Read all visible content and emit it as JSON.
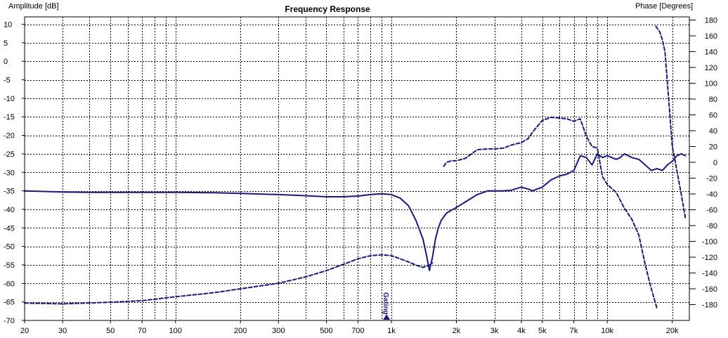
{
  "chart_data": {
    "type": "line",
    "title": "Frequency Response",
    "ylabel_left": "Amplitude [dB]",
    "ylabel_right": "Phase [Degrees]",
    "xscale": "log",
    "xlim": [
      20,
      24000
    ],
    "ylim_left": [
      -70,
      12
    ],
    "ylim_right": [
      -200,
      184
    ],
    "grid": true,
    "x_ticks": [
      20,
      30,
      50,
      70,
      100,
      200,
      300,
      500,
      700,
      1000,
      2000,
      3000,
      4000,
      5000,
      7000,
      10000,
      20000
    ],
    "x_tick_labels": [
      "20",
      "30",
      "50",
      "70",
      "100",
      "200",
      "300",
      "500",
      "700",
      "1k",
      "2k",
      "3k",
      "4k",
      "5k",
      "7k",
      "10k",
      "20k"
    ],
    "y_left_ticks": [
      10,
      5,
      0,
      -5,
      -10,
      -15,
      -20,
      -25,
      -30,
      -35,
      -40,
      -45,
      -50,
      -55,
      -60,
      -65,
      -70
    ],
    "y_right_ticks": [
      180,
      160,
      140,
      120,
      100,
      80,
      60,
      40,
      20,
      0,
      -20,
      -40,
      -60,
      -80,
      -100,
      -120,
      -140,
      -160,
      -180
    ],
    "marker": {
      "label": "Gating",
      "x": 950
    },
    "color": "#1a1a7a",
    "series": [
      {
        "axis": "left",
        "style": "solid",
        "x": [
          20,
          30,
          40,
          50,
          70,
          100,
          150,
          200,
          300,
          400,
          500,
          600,
          700,
          800,
          900,
          1000,
          1100,
          1200,
          1300,
          1400,
          1450,
          1500,
          1550,
          1600,
          1650,
          1700,
          1800,
          2000,
          2200,
          2500,
          2800,
          3000,
          3300,
          3600,
          4000,
          4300,
          4500,
          5000,
          5500,
          6000,
          6500,
          7000,
          7500,
          8000,
          8500,
          9000,
          9500,
          10000,
          10500,
          11000,
          11500,
          12000,
          13000,
          14000,
          15000,
          16000,
          17000,
          18000,
          19000,
          20000,
          21000,
          22000,
          23000
        ],
        "y": [
          -35,
          -35.3,
          -35.4,
          -35.4,
          -35.4,
          -35.4,
          -35.5,
          -35.7,
          -36,
          -36.3,
          -36.6,
          -36.6,
          -36.4,
          -36,
          -35.8,
          -36,
          -37,
          -39,
          -43,
          -48,
          -52,
          -56.5,
          -53,
          -48,
          -45,
          -43,
          -41,
          -39.5,
          -38,
          -36,
          -35,
          -35,
          -35,
          -34.8,
          -34,
          -34.5,
          -35,
          -34,
          -32,
          -31,
          -30.5,
          -29.5,
          -25.5,
          -26,
          -28,
          -25,
          -26,
          -25.5,
          -26,
          -26.5,
          -26,
          -25,
          -26,
          -26.5,
          -28,
          -29.5,
          -29,
          -29.5,
          -28,
          -27,
          -25.5,
          -25,
          -25.5
        ]
      },
      {
        "axis": "right",
        "style": "dashed",
        "x": [
          20,
          30,
          50,
          70,
          100,
          150,
          200,
          300,
          400,
          500,
          600,
          700,
          800,
          900,
          1000,
          1100,
          1200,
          1300,
          1400,
          1500,
          1550
        ],
        "y": [
          -178,
          -179,
          -177,
          -175,
          -170,
          -165,
          -160,
          -153,
          -145,
          -137,
          -129,
          -122,
          -118,
          -117,
          -118,
          -122,
          -126,
          -130,
          -133,
          -130,
          -127
        ]
      },
      {
        "axis": "right",
        "style": "dashed",
        "x": [
          1750,
          1800,
          1900,
          2000,
          2200,
          2500,
          2800,
          3000,
          3300,
          3600,
          4000,
          4300,
          4500,
          5000,
          5500,
          6000,
          6500,
          7000,
          7500,
          8000,
          8500,
          9000,
          9500,
          10000,
          11000,
          12000,
          13000,
          14000,
          15000,
          16000,
          17000
        ],
        "y": [
          -5,
          0,
          2,
          2,
          5,
          16,
          17,
          17,
          18,
          22,
          25,
          30,
          38,
          53,
          57,
          56,
          55,
          52,
          55,
          33,
          20,
          18,
          -18,
          -28,
          -38,
          -58,
          -72,
          -92,
          -130,
          -160,
          -185
        ]
      },
      {
        "axis": "right",
        "style": "dashed",
        "x": [
          16800,
          17500,
          18000,
          18500,
          19000,
          19500,
          20000,
          21000,
          22000,
          23000
        ],
        "y": [
          172,
          165,
          155,
          140,
          100,
          60,
          20,
          -10,
          -40,
          -70
        ]
      }
    ]
  }
}
